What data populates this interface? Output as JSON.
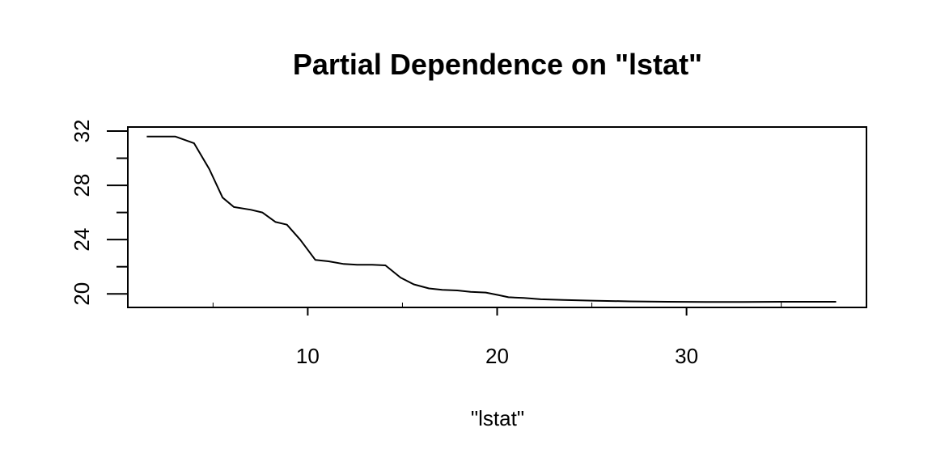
{
  "chart_data": {
    "type": "line",
    "title": "Partial Dependence on \"lstat\"",
    "xlabel": "\"lstat\"",
    "ylabel": "",
    "xlim": [
      0.5,
      39.5
    ],
    "ylim": [
      19.0,
      32.3
    ],
    "x_ticks": [
      10,
      20,
      30
    ],
    "y_ticks": [
      20,
      24,
      28,
      32
    ],
    "x_minor_ticks": [
      5,
      15,
      25,
      35
    ],
    "y_minor_ticks": [
      22,
      26,
      30
    ],
    "grid": false,
    "legend": "none",
    "line_color": "#000000",
    "series": [
      {
        "x": [
          1.5,
          3.0,
          4.0,
          4.8,
          5.5,
          6.1,
          7.0,
          7.6,
          8.3,
          8.9,
          9.6,
          10.4,
          11.1,
          11.9,
          12.6,
          13.4,
          14.1,
          14.9,
          15.6,
          16.4,
          17.1,
          17.9,
          18.6,
          19.4,
          20.1,
          20.6,
          21.4,
          22.3,
          23.5,
          25.0,
          27.0,
          29.0,
          31.0,
          33.0,
          35.0,
          37.9
        ],
        "y": [
          31.6,
          31.6,
          31.1,
          29.2,
          27.1,
          26.4,
          26.2,
          26.0,
          25.3,
          25.1,
          24.0,
          22.5,
          22.4,
          22.2,
          22.15,
          22.15,
          22.1,
          21.2,
          20.7,
          20.4,
          20.3,
          20.25,
          20.15,
          20.1,
          19.9,
          19.75,
          19.7,
          19.6,
          19.55,
          19.5,
          19.45,
          19.42,
          19.4,
          19.4,
          19.42,
          19.42
        ]
      }
    ]
  }
}
